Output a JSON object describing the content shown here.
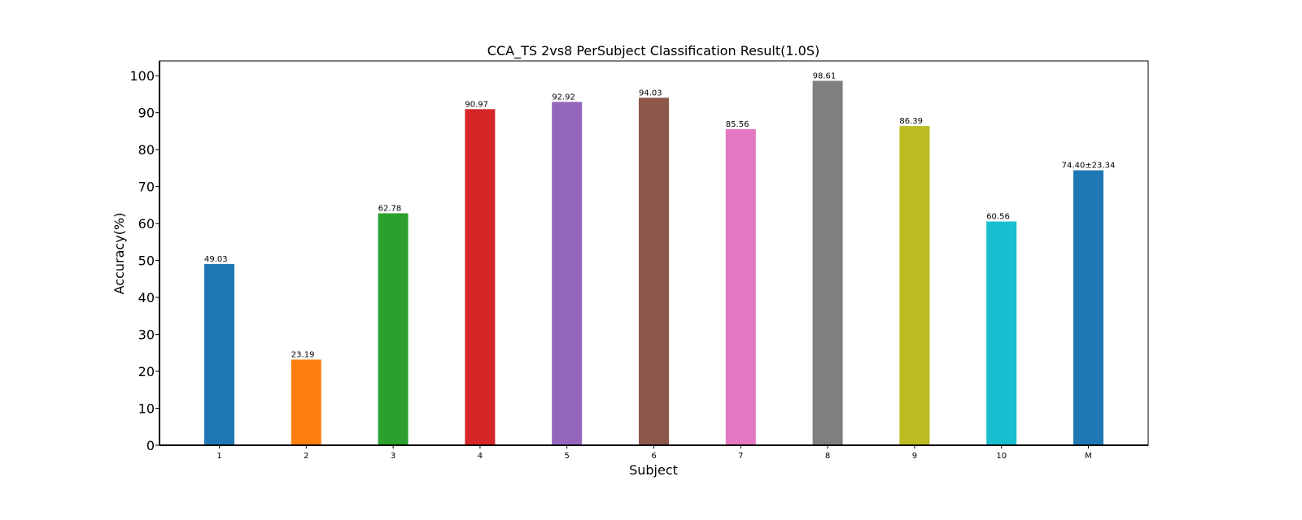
{
  "chart_data": {
    "type": "bar",
    "title": "CCA_TS 2vs8 PerSubject Classification Result(1.0S)",
    "xlabel": "Subject",
    "ylabel": "Accuracy(%)",
    "ylim": [
      0,
      104
    ],
    "yticks": [
      0,
      10,
      20,
      30,
      40,
      50,
      60,
      70,
      80,
      90,
      100
    ],
    "categories": [
      "1",
      "2",
      "3",
      "4",
      "5",
      "6",
      "7",
      "8",
      "9",
      "10",
      "M"
    ],
    "values": [
      49.03,
      23.19,
      62.78,
      90.97,
      92.92,
      94.03,
      85.56,
      98.61,
      86.39,
      60.56,
      74.4
    ],
    "value_labels": [
      "49.03",
      "23.19",
      "62.78",
      "90.97",
      "92.92",
      "94.03",
      "85.56",
      "98.61",
      "86.39",
      "60.56",
      "74.40±23.34"
    ],
    "colors": [
      "#1f77b4",
      "#ff7f0e",
      "#2ca02c",
      "#d62728",
      "#9467bd",
      "#8c564b",
      "#e377c2",
      "#7f7f7f",
      "#bcbd22",
      "#17becf",
      "#1f77b4"
    ],
    "label_colors": [
      "#000000",
      "#000000",
      "#000000",
      "#000000",
      "#000000",
      "#000000",
      "#000000",
      "#000000",
      "#000000",
      "#000000",
      "#ff0000"
    ],
    "grid": false,
    "legend": "none"
  }
}
